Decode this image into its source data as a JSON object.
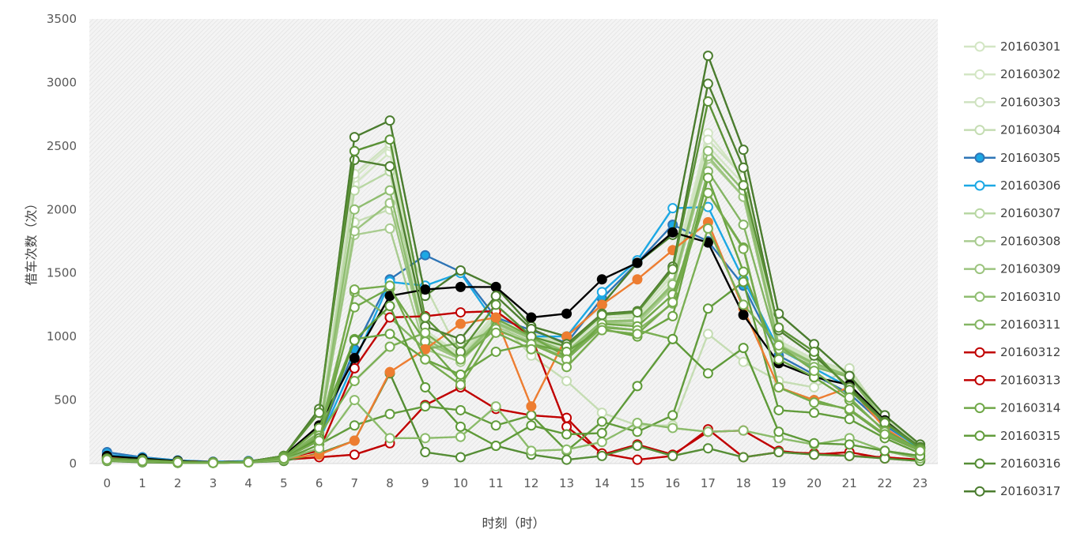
{
  "chart_data": {
    "type": "line",
    "title": "",
    "xlabel": "时刻（时）",
    "ylabel": "借车次数（次）",
    "ylim": [
      0,
      3500
    ],
    "yticks": [
      0,
      500,
      1000,
      1500,
      2000,
      2500,
      3000,
      3500
    ],
    "grid": "light hatched plot area, no gridlines",
    "legend_position": "right",
    "x": [
      0,
      1,
      2,
      3,
      4,
      5,
      6,
      7,
      8,
      9,
      10,
      11,
      12,
      13,
      14,
      15,
      16,
      17,
      18,
      19,
      20,
      21,
      22,
      23
    ],
    "series": [
      {
        "name": "20160301",
        "color": "#d3e6c4",
        "fill": "#ffffff",
        "values": [
          60,
          40,
          20,
          10,
          15,
          50,
          250,
          2200,
          2450,
          1000,
          850,
          1150,
          1000,
          900,
          1150,
          1150,
          1450,
          2500,
          2200,
          950,
          800,
          700,
          350,
          130
        ]
      },
      {
        "name": "20160302",
        "color": "#d3e6c4",
        "fill": "#ffffff",
        "values": [
          55,
          35,
          20,
          10,
          15,
          50,
          260,
          2250,
          2500,
          1050,
          860,
          1180,
          1020,
          920,
          1180,
          1160,
          1500,
          2600,
          2250,
          960,
          810,
          720,
          360,
          140
        ]
      },
      {
        "name": "20160303",
        "color": "#cfe2c0",
        "fill": "#ffffff",
        "values": [
          55,
          35,
          18,
          10,
          15,
          48,
          255,
          2280,
          2520,
          1020,
          870,
          1190,
          1030,
          930,
          1170,
          1180,
          1480,
          2550,
          2260,
          970,
          820,
          730,
          360,
          130
        ]
      },
      {
        "name": "20160304",
        "color": "#c5ddb3",
        "fill": "#ffffff",
        "values": [
          58,
          36,
          18,
          10,
          15,
          50,
          250,
          1900,
          2000,
          1400,
          850,
          1150,
          850,
          650,
          400,
          300,
          300,
          1020,
          800,
          650,
          600,
          750,
          350,
          150
        ]
      },
      {
        "name": "20160305",
        "color": "#2e75b6",
        "fill": "#1ca8e4",
        "values": [
          90,
          50,
          25,
          15,
          20,
          50,
          200,
          900,
          1450,
          1640,
          1510,
          1150,
          1050,
          950,
          1300,
          1580,
          1880,
          1750,
          1400,
          850,
          700,
          550,
          300,
          120
        ]
      },
      {
        "name": "20160306",
        "color": "#1ca8e4",
        "fill": "#ffffff",
        "values": [
          70,
          45,
          25,
          12,
          18,
          45,
          180,
          800,
          1430,
          1400,
          1500,
          1100,
          1000,
          1000,
          1350,
          1600,
          2010,
          2020,
          1450,
          900,
          750,
          600,
          320,
          110
        ]
      },
      {
        "name": "20160307",
        "color": "#b8d7a3",
        "fill": "#ffffff",
        "values": [
          50,
          35,
          18,
          10,
          15,
          50,
          240,
          2150,
          2300,
          950,
          840,
          1120,
          990,
          880,
          1120,
          1120,
          1420,
          2450,
          2150,
          940,
          790,
          690,
          340,
          130
        ]
      },
      {
        "name": "20160308",
        "color": "#a9cc90",
        "fill": "#ffffff",
        "values": [
          50,
          35,
          18,
          10,
          15,
          50,
          240,
          1800,
          1850,
          900,
          800,
          1080,
          960,
          860,
          1100,
          1100,
          1380,
          2400,
          2100,
          930,
          780,
          690,
          340,
          130
        ]
      },
      {
        "name": "20160309",
        "color": "#9cc47f",
        "fill": "#ffffff",
        "values": [
          50,
          35,
          18,
          10,
          15,
          50,
          240,
          1830,
          2050,
          950,
          820,
          1100,
          980,
          870,
          1110,
          1120,
          1400,
          2420,
          2100,
          920,
          780,
          680,
          330,
          125
        ]
      },
      {
        "name": "20160310",
        "color": "#8fbd70",
        "fill": "#ffffff",
        "values": [
          50,
          35,
          18,
          10,
          15,
          50,
          240,
          2000,
          2150,
          980,
          830,
          1110,
          990,
          880,
          1120,
          1130,
          1410,
          2460,
          2150,
          930,
          790,
          690,
          330,
          125
        ]
      },
      {
        "name": "20160311",
        "color": "#84b563",
        "fill": "#ffffff",
        "values": [
          50,
          35,
          18,
          10,
          15,
          50,
          240,
          1350,
          1150,
          900,
          950,
          1050,
          950,
          830,
          1080,
          1050,
          1260,
          2300,
          1880,
          900,
          760,
          680,
          330,
          120
        ]
      },
      {
        "name": "20160312",
        "color": "#c00000",
        "fill": "#ffffff",
        "values": [
          60,
          35,
          20,
          10,
          15,
          30,
          50,
          70,
          160,
          460,
          600,
          430,
          380,
          360,
          70,
          150,
          70,
          250,
          260,
          100,
          70,
          90,
          40,
          30
        ]
      },
      {
        "name": "20160313",
        "color": "#c00000",
        "fill": "#ffffff",
        "values": [
          60,
          35,
          20,
          10,
          15,
          40,
          100,
          750,
          1150,
          1160,
          1190,
          1200,
          1000,
          290,
          80,
          30,
          60,
          270,
          50,
          90,
          80,
          60,
          50,
          30
        ]
      },
      {
        "name": "20160314",
        "color": "#70a848",
        "fill": "#ffffff",
        "values": [
          30,
          20,
          10,
          5,
          10,
          30,
          200,
          1230,
          1380,
          960,
          650,
          1140,
          1000,
          840,
          1100,
          1080,
          1330,
          2130,
          1700,
          600,
          500,
          420,
          220,
          100
        ]
      },
      {
        "name": "20160315",
        "color": "#629c3c",
        "fill": "#ffffff",
        "values": [
          25,
          15,
          10,
          5,
          10,
          30,
          150,
          300,
          390,
          450,
          420,
          300,
          380,
          100,
          330,
          250,
          380,
          1220,
          1430,
          420,
          400,
          350,
          200,
          80
        ]
      },
      {
        "name": "20160316",
        "color": "#558d35",
        "fill": "#ffffff",
        "values": [
          20,
          10,
          5,
          5,
          10,
          20,
          80,
          180,
          710,
          90,
          50,
          140,
          70,
          30,
          60,
          140,
          60,
          120,
          50,
          90,
          70,
          60,
          40,
          20
        ]
      },
      {
        "name": "20160317",
        "color": "#4a7c2e",
        "fill": "#ffffff",
        "values": [
          45,
          30,
          20,
          10,
          15,
          60,
          400,
          2570,
          2700,
          1320,
          1520,
          1390,
          1080,
          1000,
          1250,
          1580,
          1800,
          3210,
          2470,
          1180,
          940,
          690,
          380,
          150
        ]
      },
      {
        "name": "",
        "color": "#ed7d31",
        "fill": "#ed7d31",
        "values": [
          50,
          30,
          20,
          10,
          15,
          40,
          70,
          180,
          720,
          900,
          1100,
          1150,
          450,
          1000,
          1250,
          1450,
          1680,
          1900,
          1220,
          600,
          500,
          600,
          280,
          100
        ]
      },
      {
        "name": "",
        "color": "#000000",
        "fill": "#000000",
        "values": [
          60,
          40,
          20,
          10,
          15,
          60,
          300,
          830,
          1320,
          1370,
          1390,
          1390,
          1150,
          1180,
          1450,
          1580,
          1820,
          1740,
          1170,
          790,
          680,
          620,
          340,
          120
        ]
      },
      {
        "name": "",
        "color": "#4e7f30",
        "fill": "#ffffff",
        "values": [
          40,
          30,
          15,
          10,
          15,
          60,
          430,
          2390,
          2340,
          1080,
          980,
          1320,
          1060,
          940,
          1180,
          1200,
          1550,
          2990,
          2330,
          1050,
          850,
          600,
          330,
          130
        ]
      },
      {
        "name": "",
        "color": "#5a9136",
        "fill": "#ffffff",
        "values": [
          40,
          25,
          15,
          10,
          15,
          60,
          400,
          2460,
          2550,
          1150,
          880,
          1250,
          1000,
          920,
          1170,
          1190,
          1530,
          2850,
          2190,
          1070,
          880,
          580,
          320,
          120
        ]
      },
      {
        "name": "",
        "color": "#6aa441",
        "fill": "#ffffff",
        "values": [
          30,
          20,
          10,
          5,
          10,
          50,
          280,
          980,
          1020,
          820,
          700,
          880,
          940,
          880,
          1060,
          1000,
          1160,
          2250,
          1510,
          820,
          680,
          500,
          260,
          110
        ]
      },
      {
        "name": "",
        "color": "#7aaf53",
        "fill": "#ffffff",
        "values": [
          30,
          20,
          10,
          5,
          10,
          40,
          220,
          650,
          920,
          1030,
          820,
          1060,
          940,
          820,
          1070,
          1050,
          980,
          1850,
          1250,
          930,
          730,
          520,
          250,
          100
        ]
      },
      {
        "name": "",
        "color": "#8bbb6a",
        "fill": "#ffffff",
        "values": [
          25,
          15,
          10,
          5,
          10,
          30,
          120,
          500,
          200,
          200,
          210,
          450,
          100,
          110,
          170,
          320,
          280,
          250,
          260,
          200,
          150,
          200,
          100,
          40
        ]
      },
      {
        "name": "",
        "color": "#5e9a38",
        "fill": "#ffffff",
        "values": [
          30,
          20,
          10,
          5,
          10,
          40,
          200,
          970,
          1240,
          600,
          290,
          140,
          300,
          230,
          240,
          610,
          980,
          710,
          910,
          250,
          160,
          150,
          100,
          60
        ]
      },
      {
        "name": "",
        "color": "#76ab4d",
        "fill": "#ffffff",
        "values": [
          30,
          20,
          10,
          5,
          10,
          40,
          180,
          1370,
          1400,
          820,
          620,
          1030,
          900,
          760,
          1050,
          1020,
          1270,
          2130,
          1690,
          600,
          480,
          430,
          230,
          100
        ]
      }
    ]
  }
}
